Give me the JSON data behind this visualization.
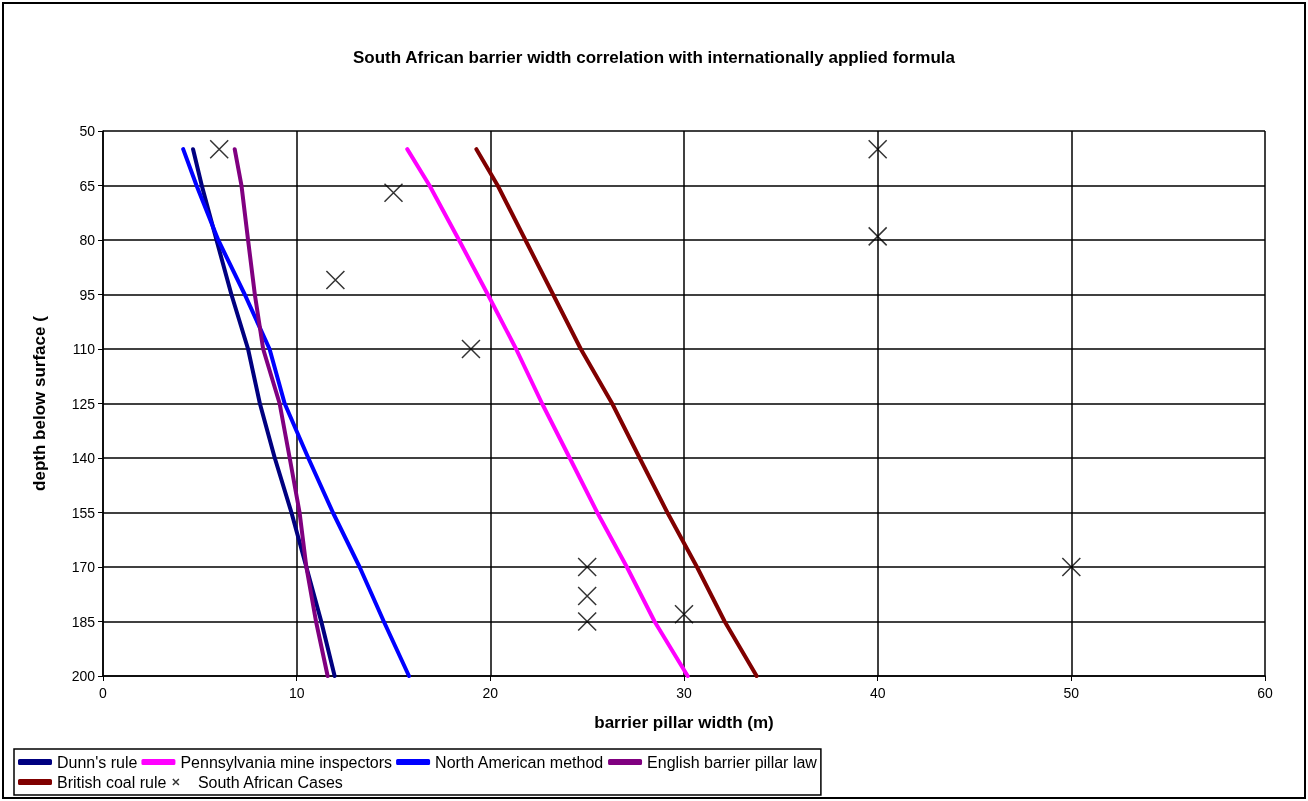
{
  "chart_data": {
    "type": "line",
    "title": "South African barrier width correlation with internationally applied formula",
    "xlabel": "barrier pillar width (m)",
    "ylabel": "depth below surface (",
    "xlim": [
      0,
      60
    ],
    "xticks": [
      0,
      10,
      20,
      30,
      40,
      50,
      60
    ],
    "ylim": [
      200,
      50
    ],
    "yticks": [
      50,
      65,
      80,
      95,
      110,
      125,
      140,
      155,
      170,
      185,
      200
    ],
    "grid": true,
    "legend": "bottom",
    "marker": "none",
    "line_style": "solid",
    "series": [
      {
        "name": "Dunn's rule",
        "color": "#000080",
        "x": [
          4.65,
          5.1,
          5.86,
          6.63,
          7.49,
          8.1,
          8.87,
          9.73,
          10.5,
          11.27,
          11.96
        ],
        "values": [
          55,
          65,
          80,
          95,
          110,
          125,
          140,
          155,
          170,
          185,
          200
        ]
      },
      {
        "name": "Pennsylvania mine inspectors",
        "color": "#ff00ff",
        "x": [
          15.71,
          16.86,
          18.38,
          19.87,
          21.33,
          22.67,
          24.1,
          25.52,
          27.05,
          28.48,
          30.19
        ],
        "values": [
          55,
          65,
          80,
          95,
          110,
          125,
          140,
          155,
          170,
          185,
          200
        ]
      },
      {
        "name": "North American method",
        "color": "#0000ff",
        "x": [
          4.14,
          4.83,
          5.95,
          7.32,
          8.6,
          9.38,
          10.6,
          11.87,
          13.25,
          14.5,
          15.8
        ],
        "values": [
          55,
          65,
          80,
          95,
          110,
          125,
          140,
          155,
          170,
          185,
          200
        ]
      },
      {
        "name": "English barrier pillar law",
        "color": "#800080",
        "x": [
          6.8,
          7.15,
          7.49,
          7.84,
          8.27,
          9.12,
          9.64,
          10.15,
          10.5,
          11.0,
          11.6
        ],
        "values": [
          55,
          65,
          80,
          95,
          110,
          125,
          140,
          155,
          170,
          185,
          200
        ]
      },
      {
        "name": "British coal rule",
        "color": "#800000",
        "x": [
          19.28,
          20.38,
          21.81,
          23.24,
          24.67,
          26.29,
          27.71,
          29.14,
          30.67,
          32.1,
          33.75
        ],
        "values": [
          55,
          65,
          80,
          95,
          110,
          125,
          140,
          155,
          170,
          185,
          200
        ]
      },
      {
        "name": "South African Cases",
        "type": "scatter",
        "marker": "cross",
        "color": "#000000",
        "x": [
          6,
          15,
          12,
          19,
          40,
          40,
          50,
          25,
          25,
          25,
          30
        ],
        "values": [
          55,
          67,
          91,
          110,
          55,
          79,
          170,
          170,
          178,
          185,
          183
        ]
      }
    ]
  }
}
